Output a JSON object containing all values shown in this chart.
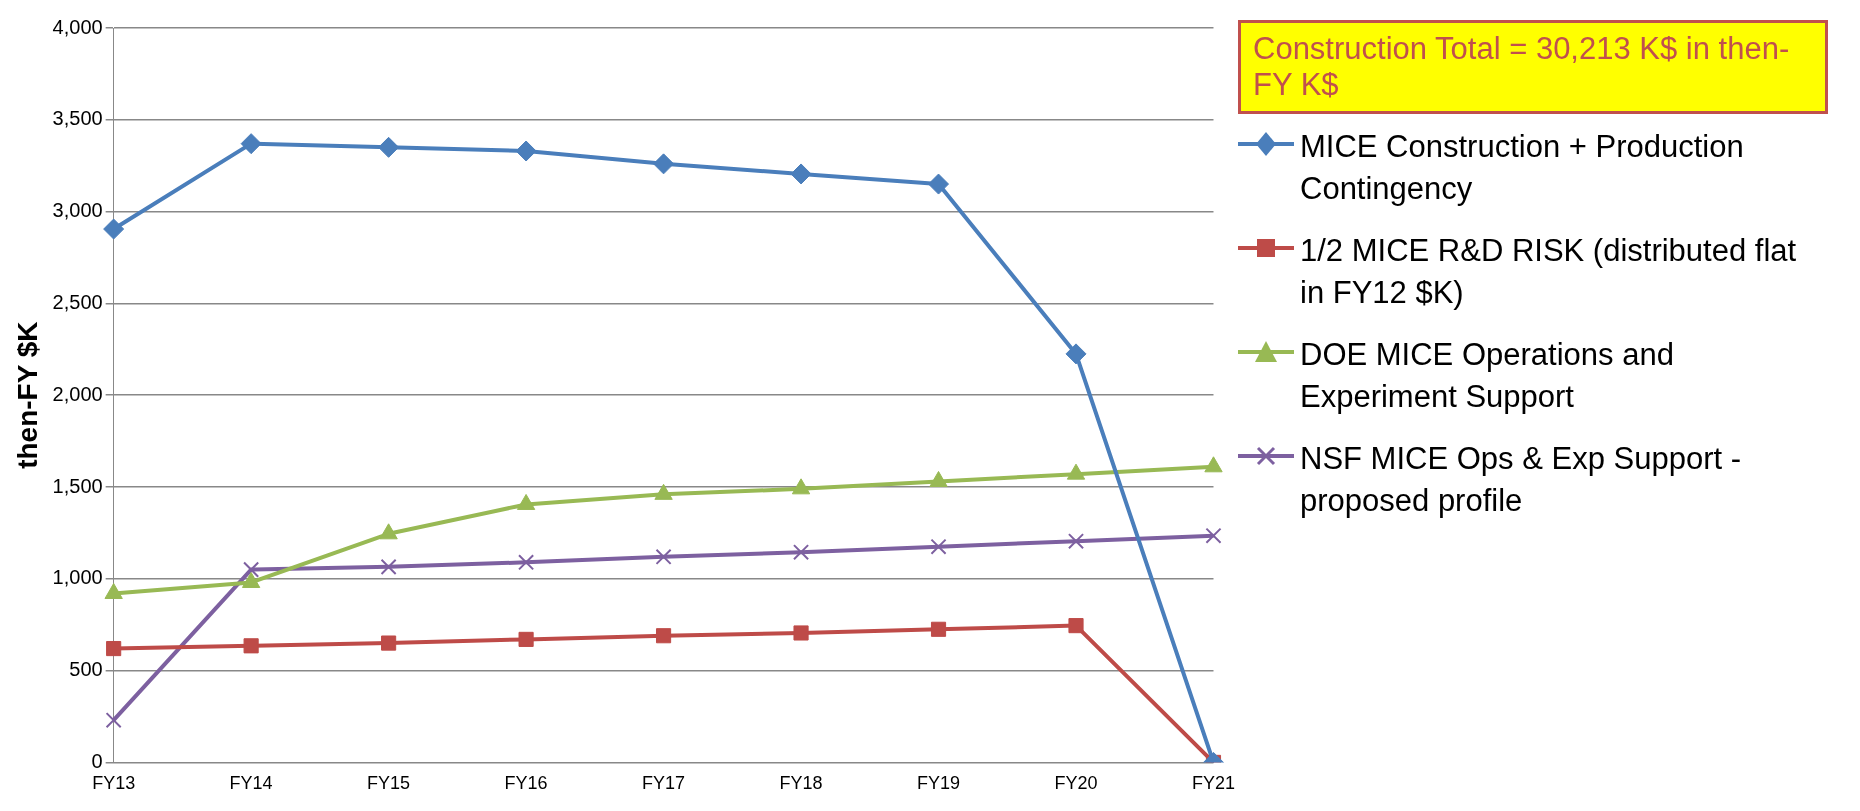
{
  "chart_data": {
    "type": "line",
    "ylabel": "then-FY $K",
    "categories": [
      "FY13",
      "FY14",
      "FY15",
      "FY16",
      "FY17",
      "FY18",
      "FY19",
      "FY20",
      "FY21"
    ],
    "ylim": [
      0,
      4000
    ],
    "yticks": [
      {
        "value": 0,
        "label": "0"
      },
      {
        "value": 500,
        "label": "500"
      },
      {
        "value": 1000,
        "label": "1,000"
      },
      {
        "value": 1500,
        "label": "1,500"
      },
      {
        "value": 2000,
        "label": "2,000"
      },
      {
        "value": 2500,
        "label": "2,500"
      },
      {
        "value": 3000,
        "label": "3,000"
      },
      {
        "value": 3500,
        "label": "3,500"
      },
      {
        "value": 4000,
        "label": "4,000"
      }
    ],
    "grid": "y",
    "legend": "right",
    "annotations": [
      "Construction Total = 30,213 K$ in then-FY K$"
    ],
    "series": [
      {
        "name": "MICE Construction + Production Contingency",
        "color": "#4a7ebb",
        "marker": "diamond",
        "values": [
          2905,
          3370,
          3350,
          3330,
          3260,
          3205,
          3150,
          2225,
          0
        ]
      },
      {
        "name": "1/2 MICE R&D RISK (distributed flat in FY12 $K)",
        "color": "#be4b48",
        "marker": "square",
        "values": [
          620,
          635,
          650,
          670,
          690,
          705,
          725,
          745,
          0
        ]
      },
      {
        "name": "DOE MICE Operations and Experiment Support",
        "color": "#98b954",
        "marker": "triangle",
        "values": [
          920,
          980,
          1245,
          1405,
          1460,
          1490,
          1530,
          1570,
          1610
        ]
      },
      {
        "name": "NSF MICE Ops & Exp Support - proposed profile",
        "color": "#7d60a0",
        "marker": "cross",
        "values": [
          230,
          1050,
          1065,
          1090,
          1120,
          1145,
          1175,
          1205,
          1235
        ]
      }
    ]
  }
}
